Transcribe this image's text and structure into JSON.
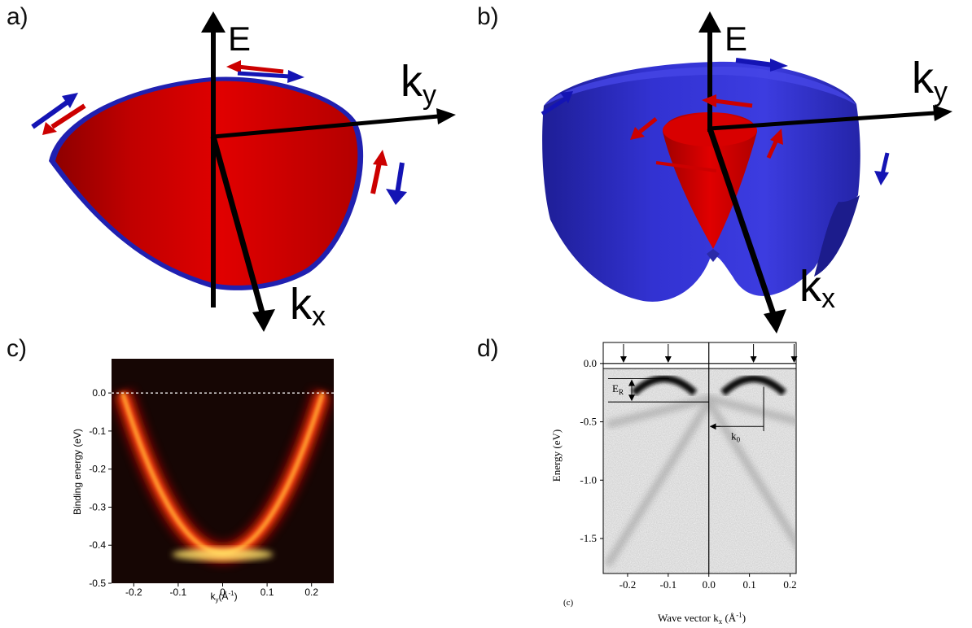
{
  "panels": {
    "a": {
      "label": "a)",
      "axis_e": "E",
      "axis_ky": "k",
      "axis_ky_sub": "y",
      "axis_kx": "k",
      "axis_kx_sub": "x"
    },
    "b": {
      "label": "b)",
      "axis_e": "E",
      "axis_ky": "k",
      "axis_ky_sub": "y",
      "axis_kx": "k",
      "axis_kx_sub": "x"
    },
    "c": {
      "label": "c)"
    },
    "d": {
      "label": "d)"
    }
  },
  "colors": {
    "red_band": "#c80000",
    "blue_band": "#2828c8",
    "arrow_red": "#b01010",
    "arrow_blue": "#1414b4"
  },
  "chart_data": [
    {
      "panel": "c",
      "type": "heatmap",
      "title": "",
      "xlabel": "k",
      "xlabel_sub": "y",
      "xlabel_unit": "(Å",
      "xlabel_unit_sup": "-1",
      "xlabel_unit_end": ")",
      "ylabel": "Binding energy (eV)",
      "xlim": [
        -0.25,
        0.25
      ],
      "ylim": [
        -0.5,
        0.09
      ],
      "x_ticks": [
        -0.2,
        -0.1,
        0.0,
        0.1,
        0.2
      ],
      "x_tick_labels": [
        "-0.2",
        "-0.1",
        "0",
        "0.1",
        "0.2"
      ],
      "y_ticks": [
        0.0,
        -0.1,
        -0.2,
        -0.3,
        -0.4,
        -0.5
      ],
      "y_tick_labels": [
        "0.0",
        "-0.1",
        "-0.2",
        "-0.3",
        "-0.4",
        "-0.5"
      ],
      "fermi_level_line": 0.0,
      "band": {
        "shape": "parabola",
        "vertex": [
          0.0,
          -0.42
        ],
        "k_f": [
          -0.225,
          0.225
        ]
      }
    },
    {
      "panel": "d",
      "type": "heatmap",
      "title": "",
      "xlabel": "Wave vector k",
      "xlabel_sub": "x",
      "xlabel_unit": " (Å",
      "xlabel_unit_sup": "-1",
      "xlabel_unit_end": ")",
      "ylabel": "Energy (eV)",
      "xlim": [
        -0.26,
        0.215
      ],
      "ylim": [
        -1.8,
        0.18
      ],
      "x_ticks": [
        -0.2,
        -0.1,
        0.0,
        0.1,
        0.2
      ],
      "x_tick_labels": [
        "-0.2",
        "-0.1",
        "0.0",
        "0.1",
        "0.2"
      ],
      "y_ticks": [
        0.0,
        -0.5,
        -1.0,
        -1.5
      ],
      "y_tick_labels": [
        "0.0",
        "-0.5",
        "-1.0",
        "-1.5"
      ],
      "top_arrows_k": [
        -0.21,
        -0.1,
        0.11,
        0.21
      ],
      "annotations": {
        "er_label": "E",
        "er_sub": "R",
        "k0_label": "k",
        "k0_sub": "0",
        "sub_label": "(c)"
      },
      "bands": {
        "maxima_k": [
          -0.11,
          0.11
        ],
        "maxima_e": -0.13,
        "crossing_e": -0.33,
        "k0": 0.11
      }
    }
  ]
}
